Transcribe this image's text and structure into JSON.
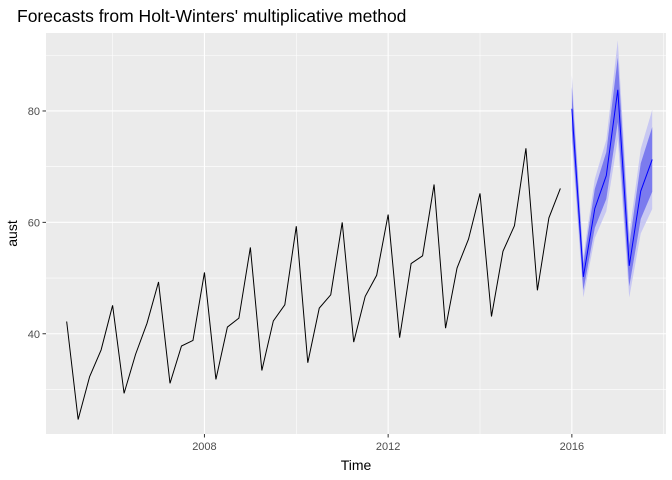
{
  "chart_data": {
    "type": "line",
    "title": "Forecasts from Holt-Winters' multiplicative method",
    "xlabel": "Time",
    "ylabel": "aust",
    "xlim": [
      2004.55,
      2018.05
    ],
    "ylim": [
      22,
      94
    ],
    "x_ticks": [
      2008,
      2012,
      2016
    ],
    "x_tick_labels": [
      "2008",
      "2012",
      "2016"
    ],
    "y_ticks": [
      40,
      60,
      80
    ],
    "y_tick_labels": [
      "40",
      "60",
      "80"
    ],
    "grid": true,
    "background": "#ebebeb",
    "history": {
      "name": "aust",
      "color": "#000000",
      "x": [
        2005.0,
        2005.25,
        2005.5,
        2005.75,
        2006.0,
        2006.25,
        2006.5,
        2006.75,
        2007.0,
        2007.25,
        2007.5,
        2007.75,
        2008.0,
        2008.25,
        2008.5,
        2008.75,
        2009.0,
        2009.25,
        2009.5,
        2009.75,
        2010.0,
        2010.25,
        2010.5,
        2010.75,
        2011.0,
        2011.25,
        2011.5,
        2011.75,
        2012.0,
        2012.25,
        2012.5,
        2012.75,
        2013.0,
        2013.25,
        2013.5,
        2013.75,
        2014.0,
        2014.25,
        2014.5,
        2014.75,
        2015.0,
        2015.25,
        2015.5,
        2015.75
      ],
      "y": [
        42.2,
        24.6,
        32.3,
        37.1,
        45.1,
        29.3,
        36.3,
        41.9,
        49.3,
        31.1,
        37.8,
        38.8,
        51.0,
        31.8,
        41.2,
        42.8,
        55.5,
        33.4,
        42.3,
        45.2,
        59.3,
        34.8,
        44.6,
        47.0,
        60.0,
        38.5,
        46.7,
        50.5,
        61.4,
        39.3,
        52.6,
        54.0,
        66.8,
        41.0,
        51.8,
        57.0,
        65.2,
        43.1,
        54.8,
        59.4,
        73.3,
        47.8,
        60.8,
        66.1
      ]
    },
    "forecast": {
      "color": "#0000ff",
      "x": [
        2016.0,
        2016.25,
        2016.5,
        2016.75,
        2017.0,
        2017.25,
        2017.5,
        2017.75
      ],
      "mean": [
        80.4,
        50.2,
        62.5,
        68.4,
        83.8,
        52.2,
        65.6,
        71.3
      ],
      "lo80": [
        76.5,
        47.8,
        59.0,
        64.2,
        78.0,
        48.5,
        60.6,
        65.5
      ],
      "hi80": [
        84.3,
        52.6,
        66.0,
        72.6,
        89.6,
        55.9,
        70.6,
        77.1
      ],
      "lo95": [
        74.4,
        46.5,
        57.2,
        62.0,
        74.9,
        46.5,
        58.0,
        62.4
      ],
      "hi95": [
        86.4,
        53.9,
        67.8,
        74.8,
        92.7,
        57.9,
        73.2,
        80.2
      ],
      "band80_color": "#7b7bee",
      "band95_color": "#c8c8f2"
    }
  }
}
